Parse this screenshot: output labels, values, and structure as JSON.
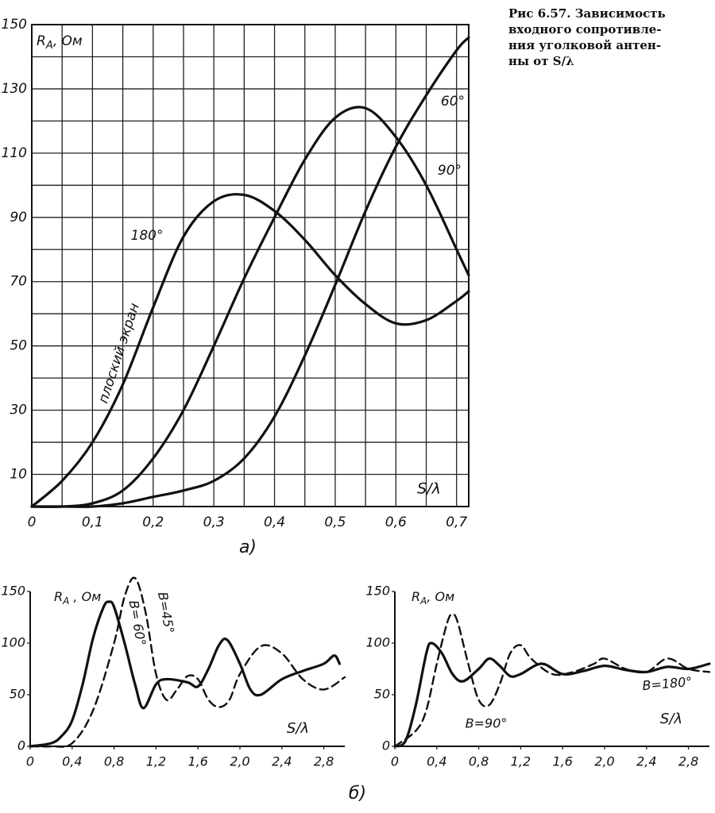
{
  "caption": [
    "Рис 6.57. Зависимость",
    "входного сопротивле-",
    "ния уголковой антен-",
    "ны от S/λ"
  ],
  "panel_b_label": "б)",
  "chart_data": [
    {
      "type": "line",
      "panel_label": "а)",
      "ylabel": {
        "main": "R",
        "sub": "A",
        "unit": ", Ом"
      },
      "xlabel": "S/λ",
      "xlim": [
        0,
        0.72
      ],
      "ylim": [
        0,
        150
      ],
      "xticks": [
        0,
        {
          "value": 0.1,
          "label": "0,1"
        },
        {
          "value": 0.2,
          "label": "0,2"
        },
        {
          "value": 0.3,
          "label": "0,3"
        },
        {
          "value": 0.4,
          "label": "0,4"
        },
        {
          "value": 0.5,
          "label": "0,5"
        },
        {
          "value": 0.6,
          "label": "0,6"
        },
        {
          "value": 0.7,
          "label": "0,7"
        }
      ],
      "yticks": [
        10,
        30,
        50,
        70,
        90,
        110,
        130,
        150
      ],
      "minor_xticks": [
        0.05,
        0.15,
        0.25,
        0.35,
        0.45,
        0.55,
        0.65
      ],
      "minor_yticks": [
        20,
        40,
        60,
        80,
        100,
        120,
        140
      ],
      "grid": true,
      "frame": true,
      "annotation": "плоский экран",
      "series": [
        {
          "name": "180°",
          "color": "#111111",
          "dash": false,
          "x": [
            0,
            0.05,
            0.1,
            0.15,
            0.2,
            0.25,
            0.3,
            0.35,
            0.4,
            0.45,
            0.5,
            0.55,
            0.6,
            0.65,
            0.7,
            0.72
          ],
          "values": [
            0,
            8,
            20,
            38,
            62,
            84,
            95,
            97,
            92,
            83,
            72,
            63,
            57,
            58,
            64,
            67
          ]
        },
        {
          "name": "90°",
          "color": "#111111",
          "dash": false,
          "x": [
            0,
            0.05,
            0.1,
            0.15,
            0.2,
            0.25,
            0.3,
            0.35,
            0.4,
            0.45,
            0.5,
            0.55,
            0.6,
            0.65,
            0.7,
            0.72
          ],
          "values": [
            0,
            0,
            1,
            5,
            15,
            30,
            50,
            71,
            90,
            108,
            121,
            124,
            115,
            100,
            80,
            72
          ]
        },
        {
          "name": "60°",
          "color": "#111111",
          "dash": false,
          "x": [
            0,
            0.05,
            0.1,
            0.15,
            0.2,
            0.25,
            0.3,
            0.35,
            0.4,
            0.45,
            0.5,
            0.55,
            0.6,
            0.65,
            0.7,
            0.72
          ],
          "values": [
            0,
            0,
            0,
            1,
            3,
            5,
            8,
            15,
            28,
            47,
            69,
            92,
            112,
            128,
            142,
            146
          ]
        }
      ]
    },
    {
      "type": "line",
      "ylabel": {
        "main": "R",
        "sub": "A",
        "unit": " , Ом"
      },
      "xlabel": "S/λ",
      "xlim": [
        0,
        3.0
      ],
      "ylim": [
        0,
        150
      ],
      "xticks": [
        0,
        {
          "value": 0.4,
          "label": "0,4"
        },
        {
          "value": 0.8,
          "label": "0,8"
        },
        {
          "value": 1.2,
          "label": "1,2"
        },
        {
          "value": 1.6,
          "label": "1,6"
        },
        {
          "value": 2.0,
          "label": "2,0"
        },
        {
          "value": 2.4,
          "label": "2,4"
        },
        {
          "value": 2.8,
          "label": "2,8"
        }
      ],
      "yticks": [
        0,
        50,
        100,
        150
      ],
      "grid": false,
      "frame": false,
      "series": [
        {
          "name": "B= 60°",
          "color": "#111111",
          "dash": false,
          "x": [
            0,
            0.2,
            0.3,
            0.4,
            0.5,
            0.6,
            0.7,
            0.75,
            0.8,
            0.9,
            1.0,
            1.08,
            1.2,
            1.3,
            1.5,
            1.6,
            1.7,
            1.8,
            1.88,
            2.0,
            2.1,
            2.2,
            2.4,
            2.6,
            2.8,
            2.9,
            2.95
          ],
          "values": [
            0,
            3,
            10,
            25,
            60,
            105,
            135,
            140,
            135,
            100,
            60,
            37,
            60,
            65,
            62,
            58,
            75,
            98,
            103,
            80,
            55,
            50,
            65,
            73,
            80,
            88,
            80
          ]
        },
        {
          "name": "B=45°",
          "color": "#111111",
          "dash": true,
          "x": [
            0,
            0.2,
            0.4,
            0.6,
            0.8,
            0.9,
            1.0,
            1.1,
            1.2,
            1.3,
            1.4,
            1.5,
            1.6,
            1.7,
            1.8,
            1.9,
            2.0,
            2.2,
            2.4,
            2.6,
            2.8,
            3.0
          ],
          "values": [
            0,
            0,
            3,
            35,
            100,
            145,
            163,
            130,
            70,
            45,
            55,
            68,
            65,
            45,
            38,
            45,
            70,
            97,
            90,
            65,
            55,
            67
          ]
        }
      ]
    },
    {
      "type": "line",
      "ylabel": {
        "main": "R",
        "sub": "A",
        "unit": ", Ом"
      },
      "xlabel": "S/λ",
      "xlim": [
        0,
        3.0
      ],
      "ylim": [
        0,
        150
      ],
      "xticks": [
        0,
        {
          "value": 0.4,
          "label": "0,4"
        },
        {
          "value": 0.8,
          "label": "0,8"
        },
        {
          "value": 1.2,
          "label": "1,2"
        },
        {
          "value": 1.6,
          "label": "1,6"
        },
        {
          "value": 2.0,
          "label": "2,0"
        },
        {
          "value": 2.4,
          "label": "2,4"
        },
        {
          "value": 2.8,
          "label": "2,8"
        }
      ],
      "yticks": [
        0,
        50,
        100,
        150
      ],
      "grid": false,
      "frame": false,
      "series": [
        {
          "name": "B=180°",
          "color": "#111111",
          "dash": false,
          "x": [
            0,
            0.1,
            0.2,
            0.3,
            0.35,
            0.45,
            0.55,
            0.65,
            0.8,
            0.9,
            1.0,
            1.1,
            1.2,
            1.4,
            1.6,
            1.8,
            2.0,
            2.2,
            2.4,
            2.6,
            2.8,
            3.0
          ],
          "values": [
            0,
            5,
            40,
            90,
            100,
            90,
            70,
            63,
            75,
            85,
            78,
            68,
            70,
            80,
            70,
            73,
            78,
            74,
            72,
            77,
            75,
            80
          ]
        },
        {
          "name": "B=90°",
          "color": "#111111",
          "dash": true,
          "x": [
            0,
            0.2,
            0.3,
            0.4,
            0.5,
            0.55,
            0.6,
            0.7,
            0.8,
            0.9,
            1.0,
            1.1,
            1.2,
            1.3,
            1.5,
            1.7,
            1.9,
            2.0,
            2.2,
            2.4,
            2.6,
            2.8,
            3.0
          ],
          "values": [
            0,
            15,
            35,
            80,
            120,
            128,
            120,
            80,
            45,
            40,
            60,
            90,
            98,
            85,
            70,
            72,
            80,
            85,
            75,
            72,
            85,
            75,
            72
          ]
        }
      ]
    }
  ]
}
